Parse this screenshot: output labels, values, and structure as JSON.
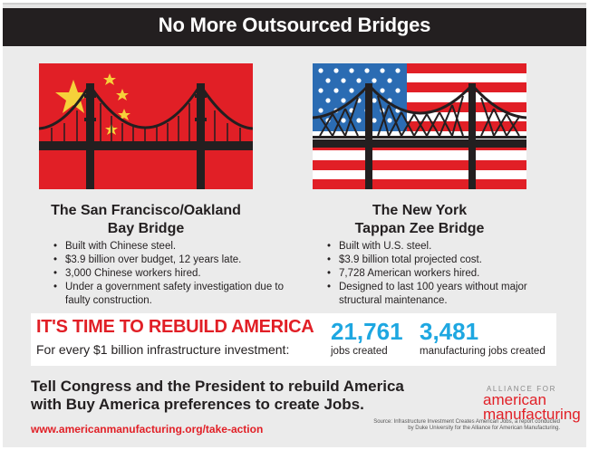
{
  "header": {
    "title": "No More Outsourced Bridges"
  },
  "left": {
    "flag_icon": "china-flag",
    "bridge_icon": "suspension-bridge-icon",
    "name_line1": "The San Francisco/Oakland",
    "name_line2": "Bay Bridge",
    "facts": [
      "Built with Chinese steel.",
      "$3.9 billion over budget, 12 years late.",
      "3,000 Chinese workers hired.",
      "Under a government safety investigation due to faulty construction."
    ]
  },
  "right": {
    "flag_icon": "us-flag",
    "bridge_icon": "cable-stayed-bridge-icon",
    "name_line1": "The New York",
    "name_line2": "Tappan Zee Bridge",
    "facts": [
      "Built with U.S. steel.",
      "$3.9 billion total projected cost.",
      "7,728 American workers hired.",
      "Designed to last 100 years without major structural maintenance."
    ]
  },
  "banner": {
    "headline": "IT'S TIME TO REBUILD AMERICA",
    "subtext": "For every $1 billion infrastructure investment:",
    "stat1_value": "21,761",
    "stat1_label": "jobs created",
    "stat2_value": "3,481",
    "stat2_label": "manufacturing jobs created"
  },
  "footer": {
    "cta_line1": "Tell Congress and the President to rebuild America",
    "cta_line2": "with Buy America preferences to create Jobs.",
    "url": "www.americanmanufacturing.org/take-action",
    "logo_small": "ALLIANCE FOR",
    "logo_line1": "american",
    "logo_line2": "manufacturing",
    "source_line1": "Source: Infrastructure Investment Creates American Jobs, a report conducted",
    "source_line2": "by Duke University for the Alliance for American Manufacturing."
  },
  "colors": {
    "red": "#e11f26",
    "blue": "#1ea7e1",
    "dark": "#231f20",
    "flag_blue": "#2b6cb3",
    "star_yellow": "#f6d13a"
  }
}
